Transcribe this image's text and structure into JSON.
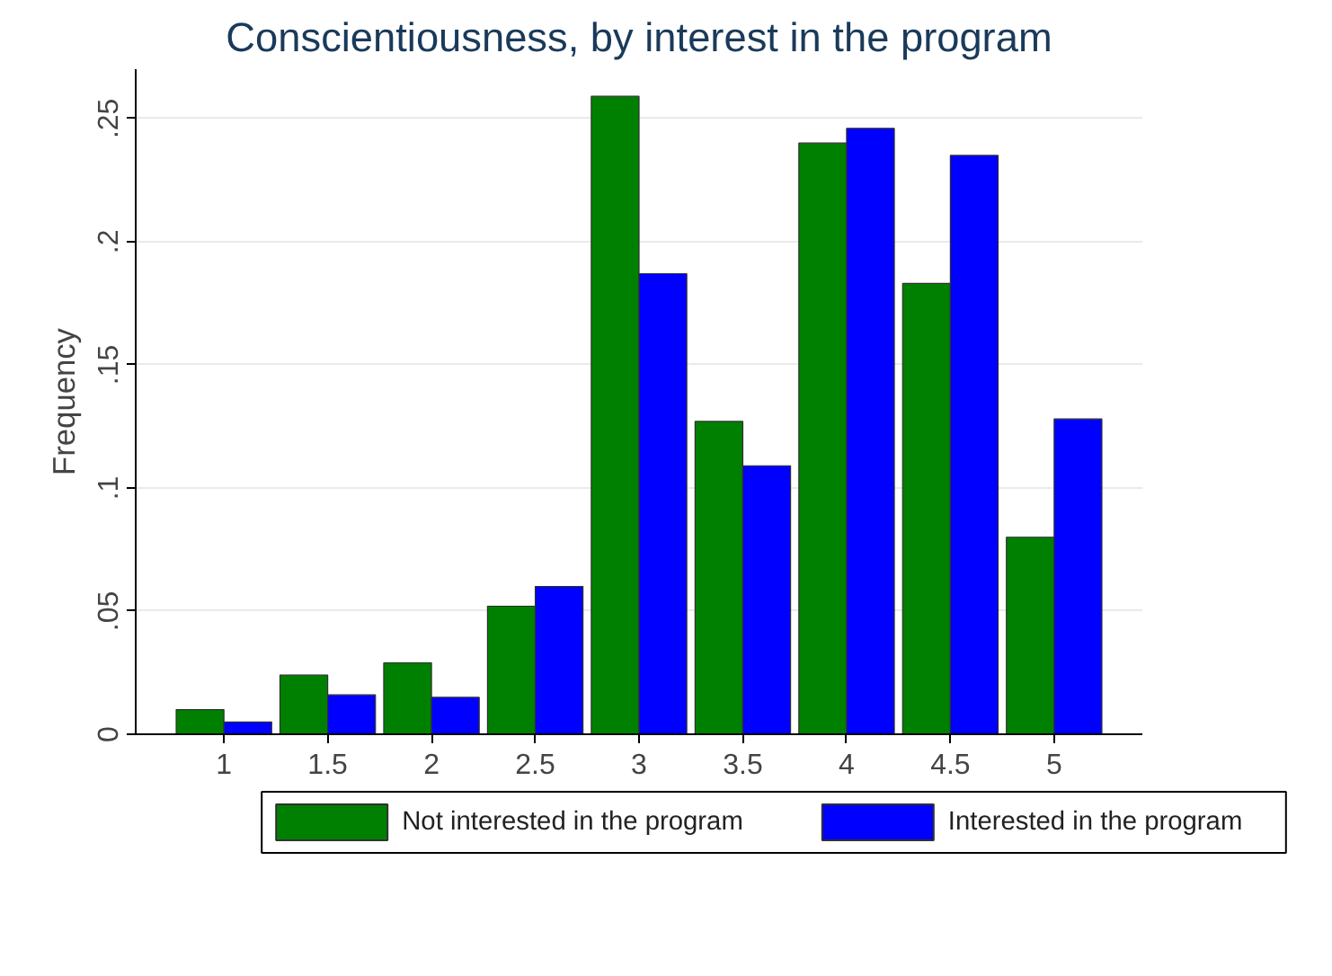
{
  "chart_data": {
    "type": "bar",
    "title": "Conscientiousness, by interest in the program",
    "ylabel": "Frequency",
    "categories": [
      "1",
      "1.5",
      "2",
      "2.5",
      "3",
      "3.5",
      "4",
      "4.5",
      "5"
    ],
    "series": [
      {
        "name": "Not interested in the program",
        "color": "#008000",
        "values": [
          0.01,
          0.024,
          0.029,
          0.052,
          0.259,
          0.127,
          0.24,
          0.183,
          0.08
        ]
      },
      {
        "name": "Interested in the program",
        "color": "#0000ff",
        "values": [
          0.005,
          0.016,
          0.015,
          0.06,
          0.187,
          0.109,
          0.246,
          0.235,
          0.128
        ]
      }
    ],
    "ylim": [
      0,
      0.27
    ],
    "yticks": [
      {
        "value": 0,
        "label": "0"
      },
      {
        "value": 0.05,
        "label": ".05"
      },
      {
        "value": 0.1,
        "label": ".1"
      },
      {
        "value": 0.15,
        "label": ".15"
      },
      {
        "value": 0.2,
        "label": ".2"
      },
      {
        "value": 0.25,
        "label": ".25"
      }
    ],
    "grid": "y",
    "legend": "bottom"
  }
}
